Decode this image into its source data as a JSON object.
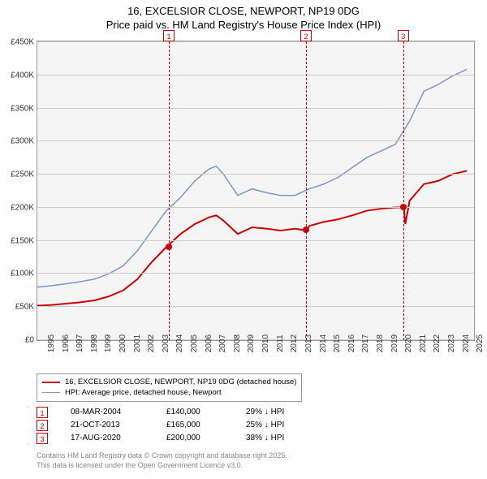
{
  "title": {
    "line1": "16, EXCELSIOR CLOSE, NEWPORT, NP19 0DG",
    "line2": "Price paid vs. HM Land Registry's House Price Index (HPI)"
  },
  "chart": {
    "type": "line",
    "background_color": "#f5f5f5",
    "grid_color": "#cccccc",
    "border_color": "#999999",
    "x_years": [
      1995,
      1996,
      1997,
      1998,
      1999,
      2000,
      2001,
      2002,
      2003,
      2004,
      2005,
      2006,
      2007,
      2008,
      2009,
      2010,
      2011,
      2012,
      2013,
      2014,
      2015,
      2016,
      2017,
      2018,
      2019,
      2020,
      2021,
      2022,
      2023,
      2024,
      2025
    ],
    "xlim": [
      1995,
      2025.5
    ],
    "ylim": [
      0,
      450
    ],
    "ytick_step": 50,
    "y_tick_labels": [
      "£0",
      "£50K",
      "£100K",
      "£150K",
      "£200K",
      "£250K",
      "£300K",
      "£350K",
      "£400K",
      "£450K"
    ],
    "series": [
      {
        "name": "price_paid",
        "label": "16, EXCELSIOR CLOSE, NEWPORT, NP19 0DG (detached house)",
        "color": "#cc0000",
        "line_width": 2,
        "points": [
          [
            1995,
            52
          ],
          [
            1996,
            53
          ],
          [
            1997,
            55
          ],
          [
            1998,
            57
          ],
          [
            1999,
            60
          ],
          [
            2000,
            66
          ],
          [
            2001,
            75
          ],
          [
            2002,
            92
          ],
          [
            2003,
            118
          ],
          [
            2004,
            140
          ],
          [
            2004.5,
            150
          ],
          [
            2005,
            160
          ],
          [
            2006,
            175
          ],
          [
            2007,
            185
          ],
          [
            2007.5,
            188
          ],
          [
            2008,
            180
          ],
          [
            2009,
            160
          ],
          [
            2010,
            170
          ],
          [
            2011,
            168
          ],
          [
            2012,
            165
          ],
          [
            2013,
            168
          ],
          [
            2013.8,
            165
          ],
          [
            2014,
            172
          ],
          [
            2015,
            178
          ],
          [
            2016,
            182
          ],
          [
            2017,
            188
          ],
          [
            2018,
            195
          ],
          [
            2019,
            198
          ],
          [
            2020,
            200
          ],
          [
            2020.6,
            200
          ],
          [
            2020.7,
            175
          ],
          [
            2021,
            210
          ],
          [
            2022,
            235
          ],
          [
            2023,
            240
          ],
          [
            2024,
            250
          ],
          [
            2025,
            255
          ]
        ]
      },
      {
        "name": "hpi",
        "label": "HPI: Average price, detached house, Newport",
        "color": "#7a96c8",
        "line_width": 1.5,
        "points": [
          [
            1995,
            80
          ],
          [
            1996,
            82
          ],
          [
            1997,
            85
          ],
          [
            1998,
            88
          ],
          [
            1999,
            92
          ],
          [
            2000,
            100
          ],
          [
            2001,
            112
          ],
          [
            2002,
            135
          ],
          [
            2003,
            165
          ],
          [
            2004,
            195
          ],
          [
            2005,
            215
          ],
          [
            2006,
            240
          ],
          [
            2007,
            258
          ],
          [
            2007.5,
            262
          ],
          [
            2008,
            250
          ],
          [
            2009,
            218
          ],
          [
            2010,
            228
          ],
          [
            2011,
            222
          ],
          [
            2012,
            218
          ],
          [
            2013,
            218
          ],
          [
            2014,
            228
          ],
          [
            2015,
            235
          ],
          [
            2016,
            245
          ],
          [
            2017,
            260
          ],
          [
            2018,
            275
          ],
          [
            2019,
            285
          ],
          [
            2020,
            295
          ],
          [
            2021,
            330
          ],
          [
            2022,
            375
          ],
          [
            2023,
            385
          ],
          [
            2024,
            398
          ],
          [
            2025,
            408
          ]
        ]
      }
    ],
    "markers": [
      {
        "n": "1",
        "x": 2004.2,
        "y": 140
      },
      {
        "n": "2",
        "x": 2013.8,
        "y": 165
      },
      {
        "n": "3",
        "x": 2020.6,
        "y": 200
      }
    ]
  },
  "legend_title_fontsize": 9.5,
  "transactions": [
    {
      "n": "1",
      "date": "08-MAR-2004",
      "price": "£140,000",
      "delta": "29% ↓ HPI"
    },
    {
      "n": "2",
      "date": "21-OCT-2013",
      "price": "£165,000",
      "delta": "25% ↓ HPI"
    },
    {
      "n": "3",
      "date": "17-AUG-2020",
      "price": "£200,000",
      "delta": "38% ↓ HPI"
    }
  ],
  "footer": {
    "line1": "Contains HM Land Registry data © Crown copyright and database right 2025.",
    "line2": "This data is licensed under the Open Government Licence v3.0."
  }
}
